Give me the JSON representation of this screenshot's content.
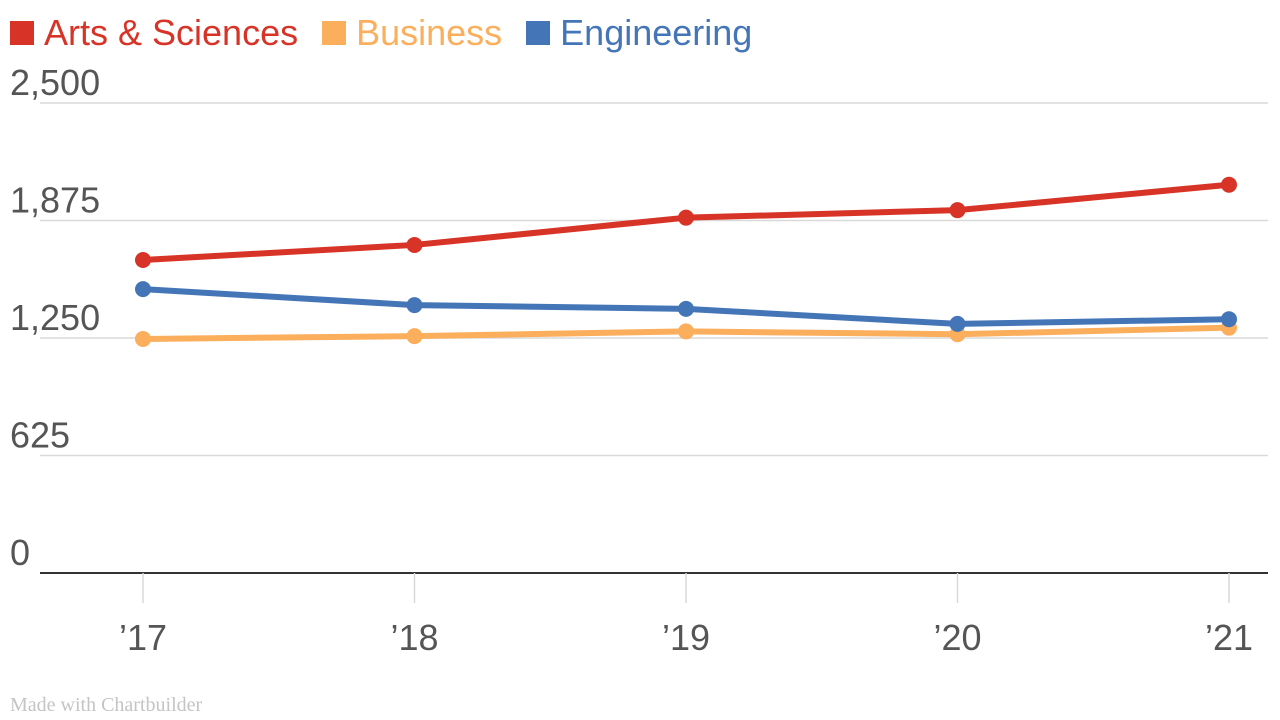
{
  "chart_data": {
    "type": "line",
    "x": [
      "’17",
      "’18",
      "’19",
      "’20",
      "’21"
    ],
    "series": [
      {
        "name": "Arts & Sciences",
        "color": "#d83327",
        "values": [
          1665,
          1745,
          1890,
          1930,
          2065
        ]
      },
      {
        "name": "Business",
        "color": "#fbae5c",
        "values": [
          1245,
          1260,
          1285,
          1270,
          1305
        ]
      },
      {
        "name": "Engineering",
        "color": "#4475b7",
        "values": [
          1510,
          1425,
          1405,
          1325,
          1350
        ]
      }
    ],
    "yticks": [
      0,
      625,
      1250,
      1875,
      2500
    ],
    "ytick_labels": [
      "0",
      "625",
      "1,250",
      "1,875",
      "2,500"
    ],
    "ylim": [
      0,
      2500
    ],
    "grid": true,
    "legend_position": "top-left",
    "title": "",
    "xlabel": "",
    "ylabel": ""
  },
  "credit": "Made with Chartbuilder"
}
